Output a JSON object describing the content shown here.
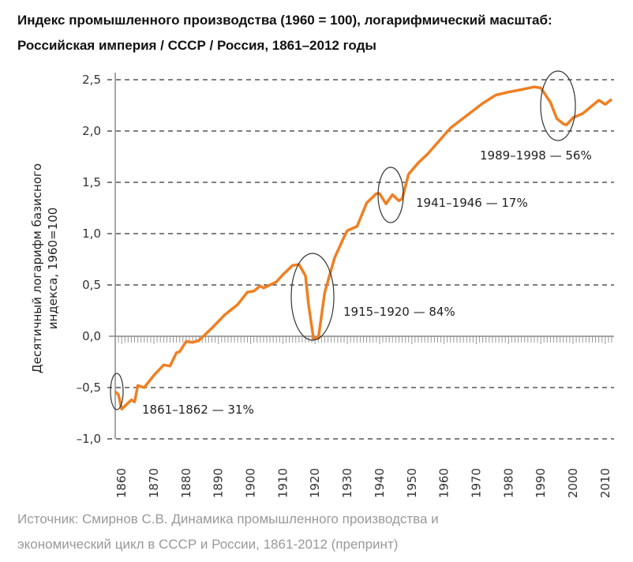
{
  "chart_data": {
    "type": "line",
    "title": "Индекс промышленного производства (1960 = 100), логарифмический масштаб: Российская империя / СССР / Россия, 1861–2012 годы",
    "xlabel": "",
    "ylabel": [
      "Десятичный логарифм базисного",
      "индекса, 1960=100"
    ],
    "xlim": [
      1858,
      2012
    ],
    "ylim": [
      -1.0,
      2.5
    ],
    "xticks": [
      1860,
      1870,
      1880,
      1890,
      1900,
      1910,
      1920,
      1930,
      1940,
      1950,
      1960,
      1970,
      1980,
      1990,
      2000,
      2010
    ],
    "yticks": [
      2.5,
      2.0,
      1.5,
      1.0,
      0.5,
      0.0,
      -0.5,
      -1.0
    ],
    "ytick_labels": [
      "2,5",
      "2,0",
      "1,5",
      "1,0",
      "0,5",
      "0,0",
      "–0,5",
      "–1,0"
    ],
    "grid": "horizontal dashed",
    "color": "#f07f22",
    "x": [
      1858,
      1859,
      1860,
      1863,
      1864,
      1865,
      1867,
      1870,
      1873,
      1875,
      1877,
      1878,
      1880,
      1882,
      1884,
      1888,
      1892,
      1896,
      1899,
      1901,
      1903,
      1904,
      1908,
      1910,
      1913,
      1915,
      1917,
      1918,
      1919.5,
      1921,
      1923,
      1926,
      1929,
      1930,
      1933,
      1936,
      1939,
      1940,
      1942,
      1944,
      1946,
      1947,
      1949,
      1952,
      1955,
      1962,
      1967,
      1972,
      1976,
      1980,
      1985,
      1988,
      1990,
      1993,
      1995,
      1997,
      1998,
      2000,
      2003,
      2008,
      2010,
      2012
    ],
    "y": [
      -0.54,
      -0.57,
      -0.71,
      -0.62,
      -0.64,
      -0.48,
      -0.5,
      -0.38,
      -0.28,
      -0.29,
      -0.16,
      -0.15,
      -0.05,
      -0.06,
      -0.04,
      0.08,
      0.21,
      0.31,
      0.43,
      0.44,
      0.49,
      0.47,
      0.53,
      0.6,
      0.69,
      0.7,
      0.59,
      0.3,
      -0.02,
      -0.02,
      0.43,
      0.76,
      0.97,
      1.03,
      1.07,
      1.3,
      1.39,
      1.39,
      1.29,
      1.38,
      1.32,
      1.34,
      1.58,
      1.69,
      1.78,
      2.03,
      2.15,
      2.27,
      2.35,
      2.38,
      2.41,
      2.43,
      2.42,
      2.28,
      2.12,
      2.07,
      2.06,
      2.13,
      2.17,
      2.3,
      2.26,
      2.31
    ],
    "annotations": [
      {
        "label": "1861–1862 — 31%"
      },
      {
        "label": "1915–1920 — 84%"
      },
      {
        "label": "1941–1946 — 17%"
      },
      {
        "label": "1989–1998 — 56%"
      }
    ]
  },
  "source": [
    "Источник: Смирнов С.В. Динамика промышленного производства и",
    "экономический цикл в СССР и России, 1861-2012 (препринт)"
  ]
}
